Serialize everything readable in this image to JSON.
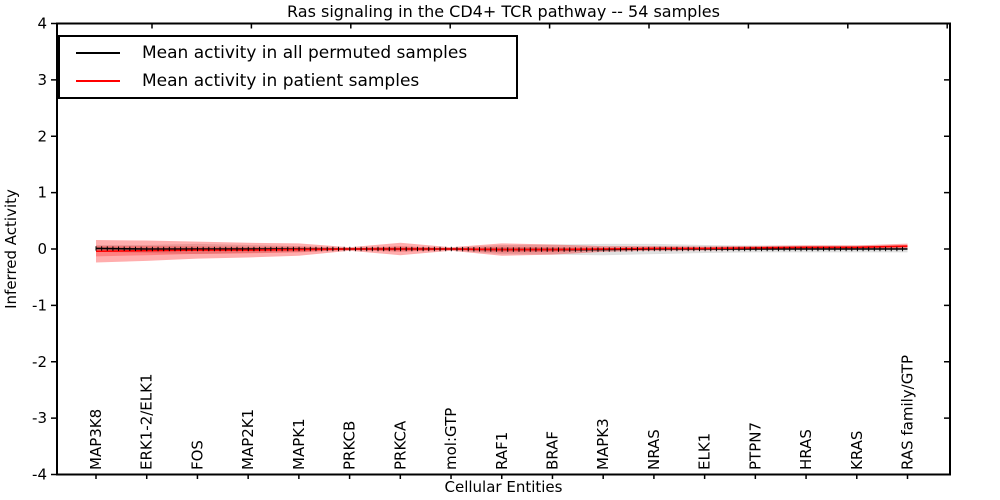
{
  "figure": {
    "title": "Ras signaling in the CD4+ TCR pathway -- 54 samples",
    "xlabel": "Cellular Entities",
    "ylabel": "Inferred Activity"
  },
  "legend": {
    "items": [
      {
        "label": "Mean activity in all permuted samples",
        "color": "#000000"
      },
      {
        "label": "Mean activity in patient samples",
        "color": "#ff0000"
      }
    ]
  },
  "chart_data": {
    "type": "line",
    "title": "Ras signaling in the CD4+ TCR pathway -- 54 samples",
    "xlabel": "Cellular Entities",
    "ylabel": "Inferred Activity",
    "ylim": [
      -4,
      4
    ],
    "yticks": [
      -4,
      -3,
      -2,
      -1,
      0,
      1,
      2,
      3,
      4
    ],
    "grid": false,
    "legend_position": "upper left",
    "entities": [
      "MAP3K8",
      "ERK1-2/ELK1",
      "FOS",
      "MAP2K1",
      "MAPK1",
      "PRKCB",
      "PRKCA",
      "mol:GTP",
      "RAF1",
      "BRAF",
      "MAPK3",
      "NRAS",
      "ELK1",
      "PTPN7",
      "HRAS",
      "KRAS",
      "RAS family/GTP"
    ],
    "series": [
      {
        "name": "Mean activity in all permuted samples",
        "color": "#000000",
        "band_color": "rgba(128,128,128,0.25)",
        "marker": "|",
        "mean": [
          0.01,
          0.0,
          0.0,
          0.0,
          0.0,
          0.0,
          0.0,
          0.0,
          -0.01,
          -0.01,
          -0.01,
          0.0,
          0.0,
          0.0,
          0.0,
          0.0,
          0.0
        ],
        "std": [
          0.06,
          0.07,
          0.09,
          0.07,
          0.05,
          0.02,
          0.04,
          0.02,
          0.08,
          0.09,
          0.1,
          0.09,
          0.07,
          0.06,
          0.06,
          0.06,
          0.06
        ]
      },
      {
        "name": "Mean activity in patient samples",
        "color": "#ff0000",
        "band_color": "rgba(255,0,0,0.32)",
        "marker": null,
        "mean": [
          -0.04,
          -0.03,
          -0.02,
          -0.02,
          -0.01,
          0.0,
          0.0,
          0.0,
          -0.01,
          -0.01,
          0.0,
          0.01,
          0.01,
          0.02,
          0.03,
          0.03,
          0.05
        ],
        "std": [
          0.2,
          0.18,
          0.15,
          0.13,
          0.11,
          0.03,
          0.11,
          0.03,
          0.11,
          0.09,
          0.05,
          0.04,
          0.035,
          0.035,
          0.035,
          0.035,
          0.045
        ]
      }
    ]
  }
}
